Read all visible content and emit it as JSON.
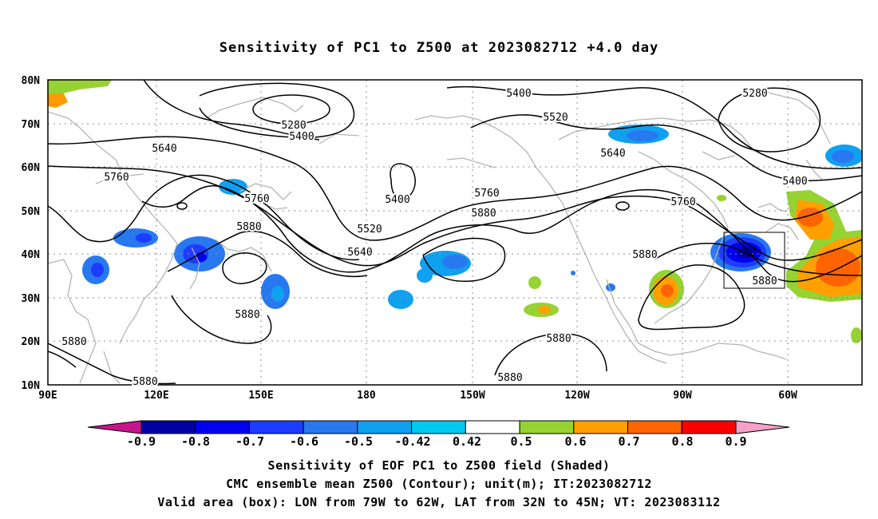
{
  "title": "Sensitivity of PC1 to Z500 at 2023082712 +4.0 day",
  "map": {
    "lat_labels": [
      "80N",
      "70N",
      "60N",
      "50N",
      "40N",
      "30N",
      "20N",
      "10N"
    ],
    "lon_labels": [
      "90E",
      "120E",
      "150E",
      "180",
      "150W",
      "120W",
      "90W",
      "60W"
    ],
    "contour_labels": [
      {
        "text": "5400"
      },
      {
        "text": "5280"
      },
      {
        "text": "5400"
      },
      {
        "text": "5280"
      },
      {
        "text": "5520"
      },
      {
        "text": "5640"
      },
      {
        "text": "5640"
      },
      {
        "text": "5760"
      },
      {
        "text": "5760"
      },
      {
        "text": "5400"
      },
      {
        "text": "5760"
      },
      {
        "text": "5880"
      },
      {
        "text": "5880"
      },
      {
        "text": "5520"
      },
      {
        "text": "5640"
      },
      {
        "text": "5880"
      },
      {
        "text": "5880"
      },
      {
        "text": "5880"
      },
      {
        "text": "5880"
      },
      {
        "text": "5880"
      },
      {
        "text": "5880"
      },
      {
        "text": "5760"
      },
      {
        "text": "5400"
      },
      {
        "text": "5880"
      }
    ],
    "box": {
      "lon_from": "79W",
      "lon_to": "62W",
      "lat_from": "32N",
      "lat_to": "45N"
    }
  },
  "colorbar": {
    "labels": [
      "-0.9",
      "-0.8",
      "-0.7",
      "-0.6",
      "-0.5",
      "-0.42",
      "0.42",
      "0.5",
      "0.6",
      "0.7",
      "0.8",
      "0.9"
    ],
    "colors": [
      "#0000a0",
      "#0000f0",
      "#1e3cff",
      "#2878f0",
      "#0fa0f0",
      "#00c8f0",
      "#ffffff",
      "#96d232",
      "#ffa000",
      "#ff6400",
      "#ff3200",
      "#fa0000"
    ],
    "low_end_color": "#c8148c",
    "high_end_color": "#f5a0c8"
  },
  "footer": {
    "line1": "Sensitivity of EOF PC1 to Z500 field (Shaded)",
    "line2": "CMC ensemble mean Z500 (Contour); unit(m); IT:2023082712",
    "line3": "Valid area (box): LON from 79W to 62W, LAT from 32N to 45N; VT: 2023083112"
  }
}
